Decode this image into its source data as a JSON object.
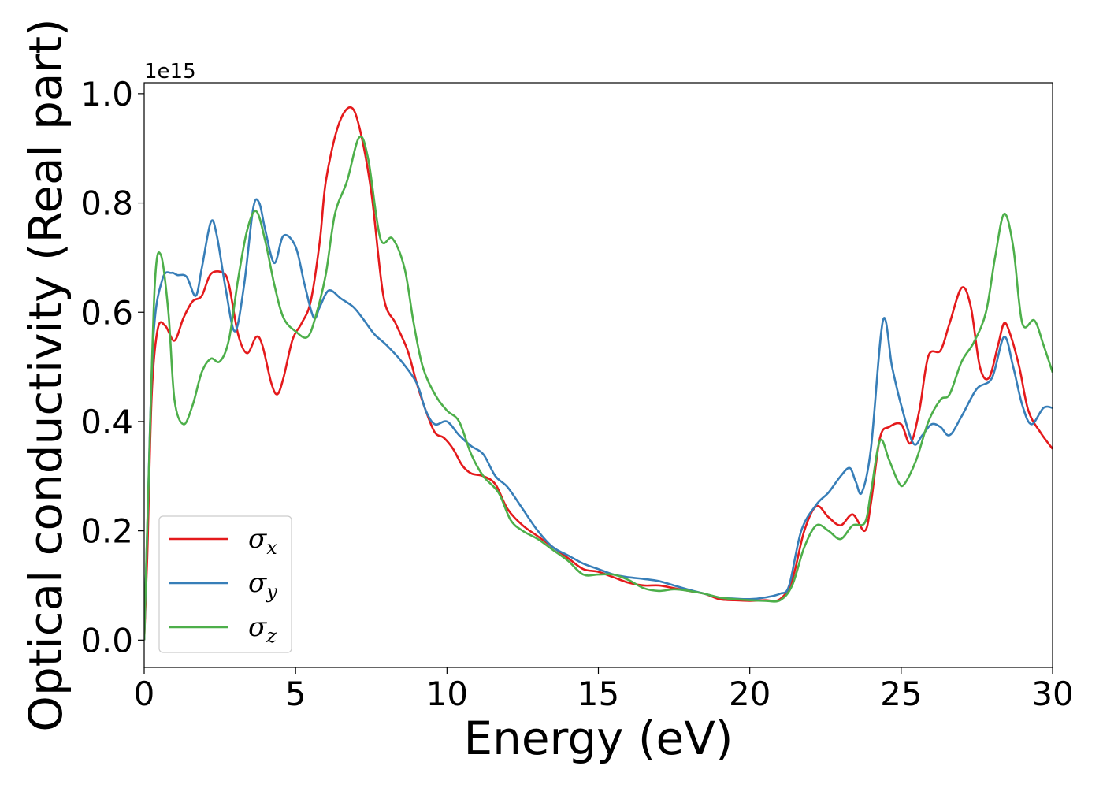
{
  "chart_data": {
    "type": "line",
    "title": "",
    "xlabel": "Energy (eV)",
    "ylabel": "Optical conductivity (Real part)",
    "y_offset_label": "1e15",
    "xlim": [
      0,
      30
    ],
    "ylim": [
      -0.05,
      1.02
    ],
    "x_ticks": [
      0,
      5,
      10,
      15,
      20,
      25,
      30
    ],
    "x_tick_labels": [
      "0",
      "5",
      "10",
      "15",
      "20",
      "25",
      "30"
    ],
    "y_ticks": [
      0.0,
      0.2,
      0.4,
      0.6,
      0.8,
      1.0
    ],
    "y_tick_labels": [
      "0.0",
      "0.2",
      "0.4",
      "0.6",
      "0.8",
      "1.0"
    ],
    "grid": false,
    "legend_position": "lower-left",
    "series": [
      {
        "name": "σx",
        "symbol": "σ",
        "subscript": "x",
        "color": "#e41a1c",
        "points": [
          [
            0,
            0
          ],
          [
            0.1,
            0.15
          ],
          [
            0.25,
            0.45
          ],
          [
            0.45,
            0.57
          ],
          [
            0.7,
            0.575
          ],
          [
            1.0,
            0.548
          ],
          [
            1.3,
            0.59
          ],
          [
            1.6,
            0.62
          ],
          [
            1.9,
            0.63
          ],
          [
            2.2,
            0.67
          ],
          [
            2.6,
            0.672
          ],
          [
            2.8,
            0.65
          ],
          [
            3.1,
            0.56
          ],
          [
            3.4,
            0.525
          ],
          [
            3.7,
            0.555
          ],
          [
            3.9,
            0.54
          ],
          [
            4.2,
            0.47
          ],
          [
            4.4,
            0.45
          ],
          [
            4.6,
            0.48
          ],
          [
            4.9,
            0.55
          ],
          [
            5.2,
            0.58
          ],
          [
            5.5,
            0.62
          ],
          [
            5.8,
            0.73
          ],
          [
            6.0,
            0.84
          ],
          [
            6.4,
            0.94
          ],
          [
            6.8,
            0.975
          ],
          [
            7.1,
            0.94
          ],
          [
            7.5,
            0.82
          ],
          [
            7.9,
            0.63
          ],
          [
            8.3,
            0.58
          ],
          [
            8.7,
            0.53
          ],
          [
            9.0,
            0.47
          ],
          [
            9.3,
            0.42
          ],
          [
            9.6,
            0.38
          ],
          [
            9.9,
            0.37
          ],
          [
            10.2,
            0.35
          ],
          [
            10.5,
            0.32
          ],
          [
            10.8,
            0.305
          ],
          [
            11.2,
            0.3
          ],
          [
            11.6,
            0.285
          ],
          [
            12.0,
            0.24
          ],
          [
            12.5,
            0.21
          ],
          [
            13.0,
            0.19
          ],
          [
            13.5,
            0.17
          ],
          [
            14.0,
            0.15
          ],
          [
            14.5,
            0.13
          ],
          [
            15.0,
            0.125
          ],
          [
            15.5,
            0.115
          ],
          [
            16.0,
            0.105
          ],
          [
            16.5,
            0.1
          ],
          [
            17.0,
            0.1
          ],
          [
            17.5,
            0.095
          ],
          [
            18.0,
            0.09
          ],
          [
            18.5,
            0.085
          ],
          [
            19.0,
            0.075
          ],
          [
            19.5,
            0.073
          ],
          [
            20.0,
            0.072
          ],
          [
            20.5,
            0.073
          ],
          [
            21.0,
            0.075
          ],
          [
            21.4,
            0.11
          ],
          [
            21.8,
            0.2
          ],
          [
            22.2,
            0.245
          ],
          [
            22.6,
            0.225
          ],
          [
            23.0,
            0.21
          ],
          [
            23.4,
            0.23
          ],
          [
            23.8,
            0.2
          ],
          [
            24.0,
            0.25
          ],
          [
            24.3,
            0.37
          ],
          [
            24.6,
            0.39
          ],
          [
            25.0,
            0.395
          ],
          [
            25.3,
            0.36
          ],
          [
            25.6,
            0.42
          ],
          [
            25.9,
            0.52
          ],
          [
            26.3,
            0.53
          ],
          [
            26.6,
            0.58
          ],
          [
            27.0,
            0.645
          ],
          [
            27.3,
            0.61
          ],
          [
            27.6,
            0.5
          ],
          [
            27.9,
            0.48
          ],
          [
            28.2,
            0.54
          ],
          [
            28.4,
            0.58
          ],
          [
            28.6,
            0.56
          ],
          [
            28.9,
            0.5
          ],
          [
            29.2,
            0.42
          ],
          [
            29.6,
            0.38
          ],
          [
            30.0,
            0.35
          ]
        ]
      },
      {
        "name": "σy",
        "symbol": "σ",
        "subscript": "y",
        "color": "#377eb8",
        "points": [
          [
            0,
            0
          ],
          [
            0.1,
            0.2
          ],
          [
            0.3,
            0.55
          ],
          [
            0.6,
            0.66
          ],
          [
            0.9,
            0.672
          ],
          [
            1.1,
            0.668
          ],
          [
            1.4,
            0.665
          ],
          [
            1.7,
            0.63
          ],
          [
            1.9,
            0.68
          ],
          [
            2.2,
            0.765
          ],
          [
            2.4,
            0.74
          ],
          [
            2.7,
            0.64
          ],
          [
            3.0,
            0.565
          ],
          [
            3.3,
            0.65
          ],
          [
            3.6,
            0.79
          ],
          [
            3.8,
            0.8
          ],
          [
            4.0,
            0.75
          ],
          [
            4.3,
            0.69
          ],
          [
            4.6,
            0.74
          ],
          [
            5.0,
            0.72
          ],
          [
            5.3,
            0.65
          ],
          [
            5.6,
            0.59
          ],
          [
            5.8,
            0.61
          ],
          [
            6.1,
            0.64
          ],
          [
            6.5,
            0.625
          ],
          [
            6.9,
            0.61
          ],
          [
            7.2,
            0.59
          ],
          [
            7.6,
            0.56
          ],
          [
            8.0,
            0.54
          ],
          [
            8.5,
            0.51
          ],
          [
            9.0,
            0.47
          ],
          [
            9.3,
            0.42
          ],
          [
            9.6,
            0.395
          ],
          [
            10.0,
            0.4
          ],
          [
            10.4,
            0.375
          ],
          [
            10.8,
            0.355
          ],
          [
            11.2,
            0.34
          ],
          [
            11.6,
            0.3
          ],
          [
            12.0,
            0.28
          ],
          [
            12.5,
            0.24
          ],
          [
            13.0,
            0.2
          ],
          [
            13.5,
            0.17
          ],
          [
            14.0,
            0.155
          ],
          [
            14.5,
            0.14
          ],
          [
            15.0,
            0.13
          ],
          [
            15.5,
            0.12
          ],
          [
            16.0,
            0.115
          ],
          [
            16.5,
            0.112
          ],
          [
            17.0,
            0.108
          ],
          [
            17.5,
            0.1
          ],
          [
            18.0,
            0.092
          ],
          [
            18.5,
            0.085
          ],
          [
            19.0,
            0.078
          ],
          [
            19.5,
            0.076
          ],
          [
            20.0,
            0.075
          ],
          [
            20.5,
            0.078
          ],
          [
            21.0,
            0.085
          ],
          [
            21.3,
            0.1
          ],
          [
            21.7,
            0.2
          ],
          [
            22.2,
            0.248
          ],
          [
            22.6,
            0.27
          ],
          [
            23.0,
            0.3
          ],
          [
            23.3,
            0.315
          ],
          [
            23.5,
            0.29
          ],
          [
            23.7,
            0.27
          ],
          [
            24.0,
            0.35
          ],
          [
            24.4,
            0.585
          ],
          [
            24.7,
            0.5
          ],
          [
            25.0,
            0.43
          ],
          [
            25.4,
            0.36
          ],
          [
            25.7,
            0.375
          ],
          [
            26.0,
            0.395
          ],
          [
            26.3,
            0.39
          ],
          [
            26.6,
            0.375
          ],
          [
            27.0,
            0.41
          ],
          [
            27.5,
            0.46
          ],
          [
            28.0,
            0.48
          ],
          [
            28.4,
            0.555
          ],
          [
            28.7,
            0.5
          ],
          [
            29.0,
            0.43
          ],
          [
            29.3,
            0.395
          ],
          [
            29.7,
            0.425
          ],
          [
            30.0,
            0.425
          ]
        ]
      },
      {
        "name": "σz",
        "symbol": "σ",
        "subscript": "z",
        "color": "#4daf4a",
        "points": [
          [
            0,
            0
          ],
          [
            0.15,
            0.3
          ],
          [
            0.35,
            0.65
          ],
          [
            0.55,
            0.705
          ],
          [
            0.8,
            0.6
          ],
          [
            1.0,
            0.44
          ],
          [
            1.3,
            0.395
          ],
          [
            1.6,
            0.43
          ],
          [
            1.9,
            0.49
          ],
          [
            2.2,
            0.515
          ],
          [
            2.5,
            0.51
          ],
          [
            2.8,
            0.55
          ],
          [
            3.1,
            0.66
          ],
          [
            3.4,
            0.75
          ],
          [
            3.7,
            0.785
          ],
          [
            4.0,
            0.73
          ],
          [
            4.3,
            0.65
          ],
          [
            4.6,
            0.59
          ],
          [
            5.0,
            0.565
          ],
          [
            5.4,
            0.555
          ],
          [
            5.7,
            0.6
          ],
          [
            6.0,
            0.67
          ],
          [
            6.3,
            0.78
          ],
          [
            6.7,
            0.84
          ],
          [
            7.1,
            0.92
          ],
          [
            7.4,
            0.88
          ],
          [
            7.8,
            0.735
          ],
          [
            8.2,
            0.735
          ],
          [
            8.6,
            0.68
          ],
          [
            8.9,
            0.58
          ],
          [
            9.2,
            0.5
          ],
          [
            9.6,
            0.45
          ],
          [
            10.0,
            0.42
          ],
          [
            10.4,
            0.4
          ],
          [
            10.8,
            0.34
          ],
          [
            11.2,
            0.3
          ],
          [
            11.7,
            0.27
          ],
          [
            12.1,
            0.22
          ],
          [
            12.5,
            0.2
          ],
          [
            13.0,
            0.185
          ],
          [
            13.5,
            0.165
          ],
          [
            14.0,
            0.145
          ],
          [
            14.5,
            0.12
          ],
          [
            15.0,
            0.12
          ],
          [
            15.5,
            0.12
          ],
          [
            16.0,
            0.11
          ],
          [
            16.5,
            0.095
          ],
          [
            17.0,
            0.09
          ],
          [
            17.5,
            0.093
          ],
          [
            18.0,
            0.09
          ],
          [
            18.5,
            0.085
          ],
          [
            19.0,
            0.078
          ],
          [
            19.5,
            0.075
          ],
          [
            20.0,
            0.073
          ],
          [
            20.5,
            0.072
          ],
          [
            21.0,
            0.073
          ],
          [
            21.4,
            0.1
          ],
          [
            21.8,
            0.17
          ],
          [
            22.2,
            0.21
          ],
          [
            22.6,
            0.2
          ],
          [
            23.0,
            0.185
          ],
          [
            23.4,
            0.21
          ],
          [
            23.8,
            0.215
          ],
          [
            24.0,
            0.27
          ],
          [
            24.3,
            0.365
          ],
          [
            24.6,
            0.33
          ],
          [
            24.9,
            0.29
          ],
          [
            25.1,
            0.285
          ],
          [
            25.5,
            0.33
          ],
          [
            25.9,
            0.4
          ],
          [
            26.3,
            0.44
          ],
          [
            26.6,
            0.45
          ],
          [
            27.0,
            0.51
          ],
          [
            27.4,
            0.545
          ],
          [
            27.8,
            0.6
          ],
          [
            28.1,
            0.7
          ],
          [
            28.4,
            0.78
          ],
          [
            28.7,
            0.72
          ],
          [
            29.0,
            0.58
          ],
          [
            29.4,
            0.585
          ],
          [
            29.7,
            0.54
          ],
          [
            30.0,
            0.49
          ]
        ]
      }
    ]
  }
}
